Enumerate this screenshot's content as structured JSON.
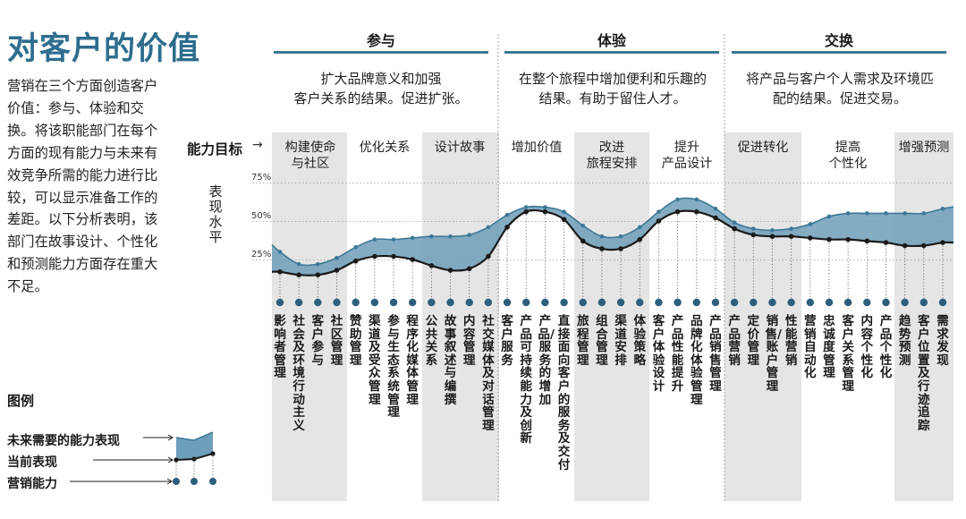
{
  "title": "对客户的价值",
  "intro": "营销在三个方面创造客户价值：参与、体验和交换。将该职能部门在每个方面的现有能力与未来有效竞争所需的能力进行比较，可以显示准备工作的差距。以下分析表明，该部门在故事设计、个性化和预测能力方面存在重大不足。",
  "legend": {
    "title": "图例",
    "future": "未来需要的能力表现",
    "current": "当前表现",
    "capability": "营销能力"
  },
  "goal_label": "能力目标",
  "goal_arrow": "→",
  "performance_label": "表现水平",
  "pillars": [
    {
      "name": "参与",
      "desc_line1": "扩大品牌意义和加强",
      "desc_line2": "客户关系的结果。促进扩张。"
    },
    {
      "name": "体验",
      "desc_line1": "在整个旅程中增加便利和乐趣的",
      "desc_line2": "结果。有助于留住人才。"
    },
    {
      "name": "交换",
      "desc_line1": "将产品与客户个人需求及环境匹",
      "desc_line2": "配的结果。促进交易。"
    }
  ],
  "goals": [
    {
      "line1": "构建使命",
      "line2": "与社区"
    },
    {
      "line1": "优化关系",
      "line2": ""
    },
    {
      "line1": "设计故事",
      "line2": ""
    },
    {
      "line1": "增加价值",
      "line2": ""
    },
    {
      "line1": "改进",
      "line2": "旅程安排"
    },
    {
      "line1": "提升",
      "line2": "产品设计"
    },
    {
      "line1": "促进转化",
      "line2": ""
    },
    {
      "line1": "提高",
      "line2": "个性化"
    },
    {
      "line1": "增强预测",
      "line2": ""
    }
  ],
  "colors": {
    "accent": "#2e6d8e",
    "band_fill": "#6e9fba",
    "band_edge": "#3d7896",
    "shade": "#e5e5e5",
    "dot": "#2c5f7c",
    "current_line": "#1a1a1a"
  },
  "chart_data": {
    "type": "area",
    "y_ticks": [
      "75%",
      "50%",
      "25%"
    ],
    "ylim": [
      0,
      100
    ],
    "categories": [
      "影响者管理",
      "社会及环境行动主义",
      "客户参与",
      "社区管理",
      "赞助管理",
      "渠道及受众管理",
      "参与生态系统管理",
      "程序化媒体管理",
      "公共关系",
      "故事叙述与编撰",
      "内容管理",
      "社交媒体及对话管理",
      "客户服务",
      "产品可持续能力及创新",
      "产品/服务的增加",
      "直接面向客户的服务及交付",
      "旅程管理",
      "组合管理",
      "渠道安排",
      "体验策略",
      "客户体验设计",
      "产品性能提升",
      "品牌化体验管理",
      "产品销售管理",
      "产品营销",
      "定价管理",
      "销售/账户管理",
      "性能营销",
      "营销自动化",
      "忠诚度管理",
      "客户关系管理",
      "内容个性化",
      "产品个性化",
      "趋势预测",
      "客户位置及行迹追踪",
      "需求发现"
    ],
    "series": [
      {
        "name": "未来需要的能力表现",
        "values": [
          30,
          22,
          22,
          26,
          33,
          38,
          38,
          39,
          40,
          40,
          41,
          46,
          54,
          59,
          59,
          56,
          47,
          40,
          40,
          46,
          56,
          64,
          64,
          58,
          49,
          45,
          44,
          45,
          48,
          53,
          55,
          55,
          55,
          55,
          55,
          58
        ]
      },
      {
        "name": "当前表现",
        "values": [
          17,
          15,
          15,
          18,
          24,
          27,
          27,
          25,
          21,
          18,
          19,
          27,
          46,
          56,
          56,
          51,
          37,
          32,
          32,
          38,
          50,
          56,
          56,
          52,
          45,
          41,
          40,
          40,
          39,
          38,
          38,
          37,
          36,
          34,
          34,
          36
        ]
      }
    ]
  }
}
